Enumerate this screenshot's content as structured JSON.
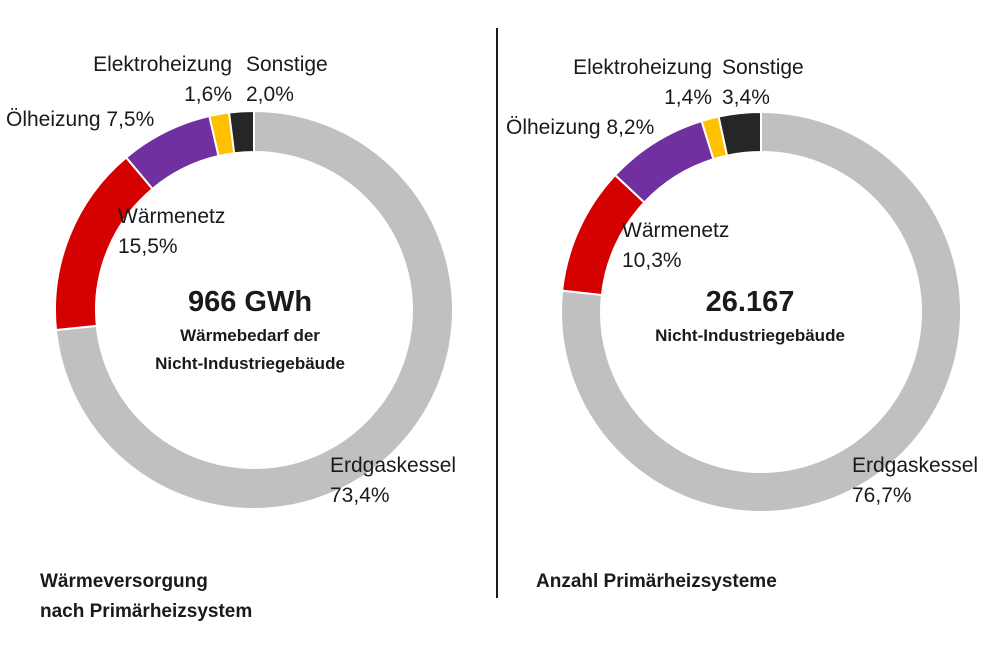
{
  "chart_data": [
    {
      "type": "pie",
      "title": "Wärmeversorgung nach Primärheizsystem",
      "center_value": "966 GWh",
      "center_text": [
        "Wärmebedarf der",
        "Nicht-Industriegebäude"
      ],
      "slices": [
        {
          "label": "Erdgaskessel",
          "value": 73.4,
          "value_label": "73,4%",
          "color": "#c0c0c0"
        },
        {
          "label": "Wärmenetz",
          "value": 15.5,
          "value_label": "15,5%",
          "color": "#d50000"
        },
        {
          "label": "Ölheizung",
          "value": 7.5,
          "value_label": "7,5%",
          "color": "#7030a0"
        },
        {
          "label": "Elektroheizung",
          "value": 1.6,
          "value_label": "1,6%",
          "color": "#ffc000"
        },
        {
          "label": "Sonstige",
          "value": 2.0,
          "value_label": "2,0%",
          "color": "#262626"
        }
      ]
    },
    {
      "type": "pie",
      "title": "Anzahl Primärheizsysteme",
      "center_value": "26.167",
      "center_text": [
        "Nicht-Industriegebäude"
      ],
      "slices": [
        {
          "label": "Erdgaskessel",
          "value": 76.7,
          "value_label": "76,7%",
          "color": "#c0c0c0"
        },
        {
          "label": "Wärmenetz",
          "value": 10.3,
          "value_label": "10,3%",
          "color": "#d50000"
        },
        {
          "label": "Ölheizung",
          "value": 8.2,
          "value_label": "8,2%",
          "color": "#7030a0"
        },
        {
          "label": "Elektroheizung",
          "value": 1.4,
          "value_label": "1,4%",
          "color": "#ffc000"
        },
        {
          "label": "Sonstige",
          "value": 3.4,
          "value_label": "3,4%",
          "color": "#262626"
        }
      ]
    }
  ]
}
